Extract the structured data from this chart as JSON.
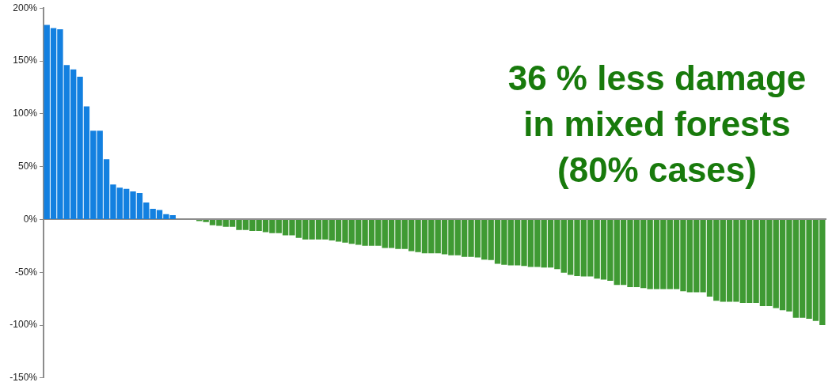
{
  "chart_data": {
    "type": "bar",
    "categories": [
      null,
      null,
      null,
      null,
      null,
      null,
      null,
      null,
      null,
      null,
      null,
      null,
      null,
      null,
      null,
      null,
      null,
      null,
      null,
      null,
      null,
      null,
      null,
      null,
      null,
      null,
      null,
      null,
      null,
      null,
      null,
      null,
      null,
      null,
      null,
      null,
      null,
      null,
      null,
      null,
      null,
      null,
      null,
      null,
      null,
      null,
      null,
      null,
      null,
      null,
      null,
      null,
      null,
      null,
      null,
      null,
      null,
      null,
      null,
      null,
      null,
      null,
      null,
      null,
      null,
      null,
      null,
      null,
      null,
      null,
      null,
      null,
      null,
      null,
      null,
      null,
      null,
      null,
      null,
      null,
      null,
      null,
      null,
      null,
      null,
      null,
      null,
      null,
      null,
      null,
      null,
      null,
      null,
      null,
      null,
      null,
      null,
      null,
      null,
      null,
      null,
      null,
      null,
      null,
      null,
      null,
      null,
      null,
      null,
      null,
      null,
      null,
      null,
      null,
      null,
      null,
      null,
      null
    ],
    "values": [
      184,
      181,
      180,
      146,
      142,
      135,
      107,
      84,
      84,
      57,
      33,
      30,
      29,
      26.5,
      25,
      16,
      10,
      9,
      5,
      4,
      null,
      null,
      null,
      -1.5,
      -2.5,
      -5.5,
      -6,
      -7,
      -7,
      -10,
      -10,
      -11,
      -11,
      -12,
      -13,
      -13,
      -15,
      -15,
      -17.5,
      -19,
      -19,
      -19,
      -19,
      -20,
      -21,
      -22,
      -23,
      -24,
      -25,
      -25,
      -25,
      -27,
      -27,
      -28,
      -28,
      -30,
      -31,
      -32,
      -32,
      -32,
      -33,
      -34,
      -34,
      -35.5,
      -35.5,
      -36,
      -38,
      -38.5,
      -42,
      -43,
      -43.5,
      -43.5,
      -44,
      -45,
      -45,
      -45.5,
      -45.5,
      -47,
      -50.5,
      -52.5,
      -53.5,
      -54,
      -54,
      -56,
      -57,
      -58,
      -62,
      -62,
      -64,
      -64,
      -65,
      -66,
      -66,
      -66,
      -66,
      -66,
      -68,
      -69,
      -69,
      -69,
      -73,
      -77,
      -78,
      -78,
      -78,
      -79,
      -79,
      -79,
      -82,
      -82,
      -84,
      -86,
      -87,
      -93,
      -93,
      -94,
      -96,
      -100
    ],
    "colors": [
      "#1380e0",
      "#1380e0",
      "#1380e0",
      "#1380e0",
      "#1380e0",
      "#1380e0",
      "#1380e0",
      "#1380e0",
      "#1380e0",
      "#1380e0",
      "#1380e0",
      "#1380e0",
      "#1380e0",
      "#1380e0",
      "#1380e0",
      "#1380e0",
      "#1380e0",
      "#1380e0",
      "#1380e0",
      "#1380e0",
      "#1380e0",
      "#1380e0",
      "#1380e0",
      "#3f9a33",
      "#3f9a33",
      "#3f9a33",
      "#3f9a33",
      "#3f9a33",
      "#3f9a33",
      "#3f9a33",
      "#3f9a33",
      "#3f9a33",
      "#3f9a33",
      "#3f9a33",
      "#3f9a33",
      "#3f9a33",
      "#3f9a33",
      "#3f9a33",
      "#3f9a33",
      "#3f9a33",
      "#3f9a33",
      "#3f9a33",
      "#3f9a33",
      "#3f9a33",
      "#3f9a33",
      "#3f9a33",
      "#3f9a33",
      "#3f9a33",
      "#3f9a33",
      "#3f9a33",
      "#3f9a33",
      "#3f9a33",
      "#3f9a33",
      "#3f9a33",
      "#3f9a33",
      "#3f9a33",
      "#3f9a33",
      "#3f9a33",
      "#3f9a33",
      "#3f9a33",
      "#3f9a33",
      "#3f9a33",
      "#3f9a33",
      "#3f9a33",
      "#3f9a33",
      "#3f9a33",
      "#3f9a33",
      "#3f9a33",
      "#3f9a33",
      "#3f9a33",
      "#3f9a33",
      "#3f9a33",
      "#3f9a33",
      "#3f9a33",
      "#3f9a33",
      "#3f9a33",
      "#3f9a33",
      "#3f9a33",
      "#3f9a33",
      "#3f9a33",
      "#3f9a33",
      "#3f9a33",
      "#3f9a33",
      "#3f9a33",
      "#3f9a33",
      "#3f9a33",
      "#3f9a33",
      "#3f9a33",
      "#3f9a33",
      "#3f9a33",
      "#3f9a33",
      "#3f9a33",
      "#3f9a33",
      "#3f9a33",
      "#3f9a33",
      "#3f9a33",
      "#3f9a33",
      "#3f9a33",
      "#3f9a33",
      "#3f9a33",
      "#3f9a33",
      "#3f9a33",
      "#3f9a33",
      "#3f9a33",
      "#3f9a33",
      "#3f9a33",
      "#3f9a33",
      "#3f9a33",
      "#3f9a33",
      "#3f9a33",
      "#3f9a33",
      "#3f9a33",
      "#3f9a33",
      "#3f9a33",
      "#3f9a33",
      "#3f9a33",
      "#3f9a33",
      "#3f9a33"
    ],
    "ylim": [
      -150,
      200
    ],
    "yticks": [
      {
        "value": -150,
        "label": "-150%"
      },
      {
        "value": -100,
        "label": "-100%"
      },
      {
        "value": -50,
        "label": "-50%"
      },
      {
        "value": 0,
        "label": "0%"
      },
      {
        "value": 50,
        "label": "50%"
      },
      {
        "value": 100,
        "label": "100%"
      },
      {
        "value": 150,
        "label": "150%"
      },
      {
        "value": 200,
        "label": "200%"
      }
    ],
    "tick_labels": "y",
    "annotations": [
      "36 % less damage in mixed forests (80% cases)"
    ]
  }
}
